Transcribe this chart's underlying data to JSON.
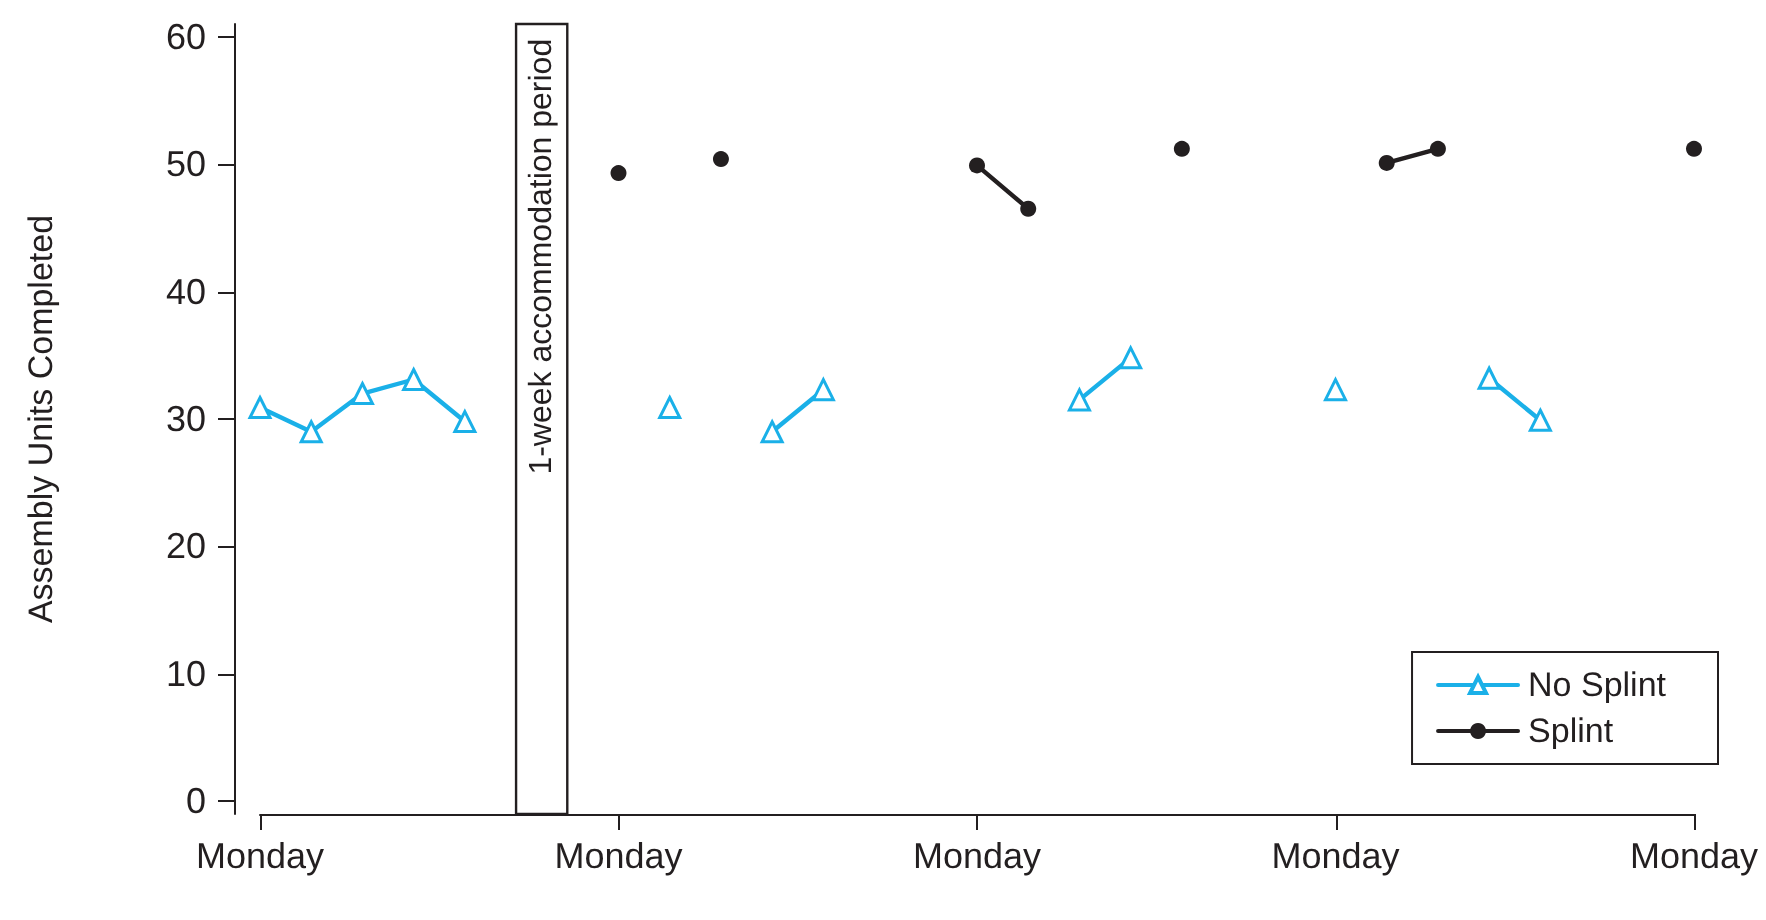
{
  "chart_data": {
    "type": "line",
    "ylabel": "Assembly Units Completed",
    "categories": [
      "Monday",
      null,
      null,
      null,
      null,
      null,
      null,
      "Monday",
      null,
      null,
      null,
      null,
      null,
      null,
      "Monday",
      null,
      null,
      null,
      null,
      null,
      null,
      "Monday",
      null,
      null,
      null,
      null,
      null,
      null,
      "Monday"
    ],
    "ylim": [
      -1,
      61
    ],
    "yticks": [
      0,
      10,
      20,
      30,
      40,
      50,
      60
    ],
    "series": [
      {
        "name": "No Splint",
        "color": "#1ab0e8",
        "marker": "triangle",
        "values": [
          30.9,
          29,
          32,
          33.1,
          29.8,
          null,
          null,
          null,
          30.9,
          null,
          29,
          32.3,
          null,
          null,
          null,
          null,
          31.5,
          34.8,
          null,
          null,
          null,
          32.3,
          null,
          null,
          33.2,
          29.9,
          null,
          null,
          null
        ]
      },
      {
        "name": "Splint",
        "color": "#231f20",
        "marker": "circle",
        "values": [
          null,
          null,
          null,
          null,
          null,
          null,
          null,
          49.3,
          null,
          50.4,
          null,
          null,
          null,
          null,
          49.9,
          46.5,
          null,
          null,
          51.2,
          null,
          null,
          null,
          50.1,
          51.2,
          null,
          null,
          null,
          null,
          51.2
        ]
      }
    ],
    "annotations": [
      "1-week accommodation period"
    ],
    "grid": false,
    "legend": "bottom right",
    "line_style": "solid"
  }
}
